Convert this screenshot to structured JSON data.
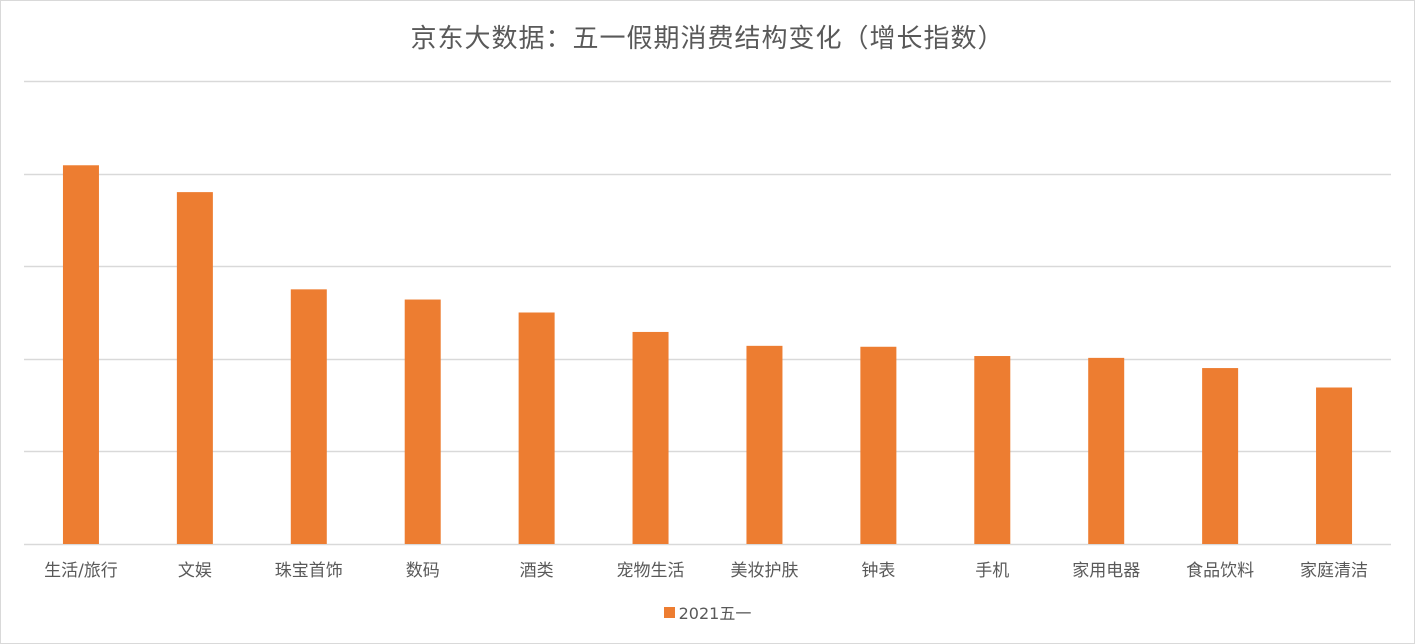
{
  "chart_data": {
    "type": "bar",
    "title": "京东大数据：五一假期消费结构变化（增长指数）",
    "xlabel": "",
    "ylabel": "",
    "categories": [
      "生活/旅行",
      "文娱",
      "珠宝首饰",
      "数码",
      "酒类",
      "宠物生活",
      "美妆护肤",
      "钟表",
      "手机",
      "家用电器",
      "食品饮料",
      "家庭清洁"
    ],
    "series": [
      {
        "name": "2021五一",
        "color": "#ed7d31",
        "values": [
          4.09,
          3.8,
          2.75,
          2.64,
          2.5,
          2.29,
          2.14,
          2.13,
          2.03,
          2.01,
          1.9,
          1.69
        ]
      }
    ],
    "ylim": [
      0,
      5
    ],
    "y_tick_labels_shown": false,
    "grid": true,
    "legend_position": "bottom"
  }
}
